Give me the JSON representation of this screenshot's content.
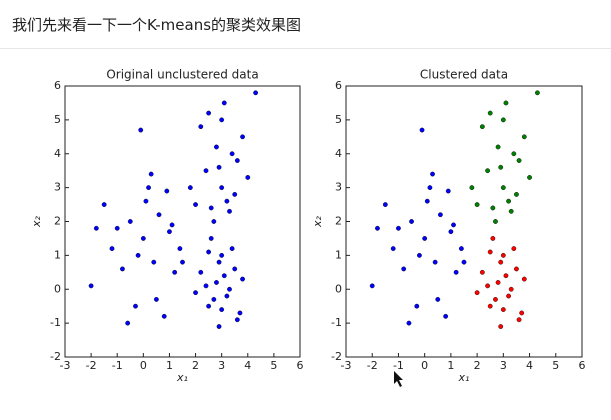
{
  "page_title": "我们先来看一下一个K-means的聚类效果图",
  "chart_data": [
    {
      "type": "scatter",
      "title": "Original unclustered data",
      "xlabel": "x₁",
      "ylabel": "x₂",
      "xlim": [
        -3,
        6
      ],
      "ylim": [
        -2,
        6
      ],
      "xticks": [
        -3,
        -2,
        -1,
        0,
        1,
        2,
        3,
        4,
        5,
        6
      ],
      "yticks": [
        -2,
        -1,
        0,
        1,
        2,
        3,
        4,
        5,
        6
      ],
      "series": [
        {
          "color": "#0000ff",
          "x": [
            -2,
            -1.5,
            -1.2,
            -0.8,
            -0.5,
            -0.3,
            0,
            0.2,
            0.4,
            0.6,
            0.8,
            1.0,
            1.2,
            1.4,
            -1,
            0.1,
            0.5,
            -0.2,
            0.9,
            1.5,
            -0.6,
            0.3,
            1.1,
            -1.8,
            -0.1,
            2.2,
            2.5,
            2.8,
            3.0,
            3.2,
            3.5,
            2.6,
            2.9,
            3.3,
            3.7,
            2.4,
            3.1,
            2.7,
            3.4,
            2.0,
            3.8,
            2.9,
            3.0,
            2.5,
            3.6,
            2.0,
            2.4,
            2.8,
            3.0,
            3.3,
            3.6,
            2.2,
            2.7,
            3.1,
            3.5,
            4.0,
            2.5,
            3.8,
            2.9,
            3.2,
            4.3,
            1.8,
            3.4,
            2.6,
            3.0
          ],
          "values": [
            0.1,
            2.5,
            1.2,
            0.6,
            2.0,
            -0.5,
            1.5,
            3.0,
            0.8,
            2.2,
            -0.8,
            1.7,
            0.5,
            1.2,
            1.8,
            2.6,
            -0.3,
            1.0,
            2.9,
            0.8,
            -1.0,
            3.4,
            1.9,
            1.8,
            4.7,
            0.5,
            -0.5,
            0.2,
            1.0,
            -0.2,
            0.6,
            1.5,
            -1.1,
            0.0,
            -0.7,
            0.1,
            0.4,
            -0.3,
            1.2,
            -0.1,
            0.3,
            0.8,
            -0.6,
            1.1,
            -0.9,
            2.5,
            3.5,
            4.2,
            3.0,
            2.3,
            3.8,
            4.8,
            2.0,
            5.5,
            2.8,
            3.3,
            5.2,
            4.5,
            3.6,
            2.6,
            5.8,
            3.0,
            4.0,
            2.4,
            5.0
          ]
        }
      ]
    },
    {
      "type": "scatter",
      "title": "Clustered data",
      "xlabel": "x₁",
      "ylabel": "x₂",
      "xlim": [
        -3,
        6
      ],
      "ylim": [
        -2,
        6
      ],
      "xticks": [
        -3,
        -2,
        -1,
        0,
        1,
        2,
        3,
        4,
        5,
        6
      ],
      "yticks": [
        -2,
        -1,
        0,
        1,
        2,
        3,
        4,
        5,
        6
      ],
      "series": [
        {
          "color": "#0000ff",
          "x": [
            -2,
            -1.5,
            -1.2,
            -0.8,
            -0.5,
            -0.3,
            0,
            0.2,
            0.4,
            0.6,
            0.8,
            1.0,
            1.2,
            1.4,
            -1,
            0.1,
            0.5,
            -0.2,
            0.9,
            1.5,
            -0.6,
            0.3,
            1.1,
            -1.8,
            -0.1
          ],
          "values": [
            0.1,
            2.5,
            1.2,
            0.6,
            2.0,
            -0.5,
            1.5,
            3.0,
            0.8,
            2.2,
            -0.8,
            1.7,
            0.5,
            1.2,
            1.8,
            2.6,
            -0.3,
            1.0,
            2.9,
            0.8,
            -1.0,
            3.4,
            1.9,
            1.8,
            4.7
          ]
        },
        {
          "color": "#ff0000",
          "x": [
            2.2,
            2.5,
            2.8,
            3.0,
            3.2,
            3.5,
            2.6,
            2.9,
            3.3,
            3.7,
            2.4,
            3.1,
            2.7,
            3.4,
            2.0,
            3.8,
            2.9,
            3.0,
            2.5,
            3.6
          ],
          "values": [
            0.5,
            -0.5,
            0.2,
            1.0,
            -0.2,
            0.6,
            1.5,
            -1.1,
            0.0,
            -0.7,
            0.1,
            0.4,
            -0.3,
            1.2,
            -0.1,
            0.3,
            0.8,
            -0.6,
            1.1,
            -0.9
          ]
        },
        {
          "color": "#008000",
          "x": [
            2.0,
            2.4,
            2.8,
            3.0,
            3.3,
            3.6,
            2.2,
            2.7,
            3.1,
            3.5,
            4.0,
            2.5,
            3.8,
            2.9,
            3.2,
            4.3,
            1.8,
            3.4,
            2.6,
            3.0
          ],
          "values": [
            2.5,
            3.5,
            4.2,
            3.0,
            2.3,
            3.8,
            4.8,
            2.0,
            5.5,
            2.8,
            3.3,
            5.2,
            4.5,
            3.6,
            2.6,
            5.8,
            3.0,
            4.0,
            2.4,
            5.0
          ]
        }
      ]
    }
  ]
}
